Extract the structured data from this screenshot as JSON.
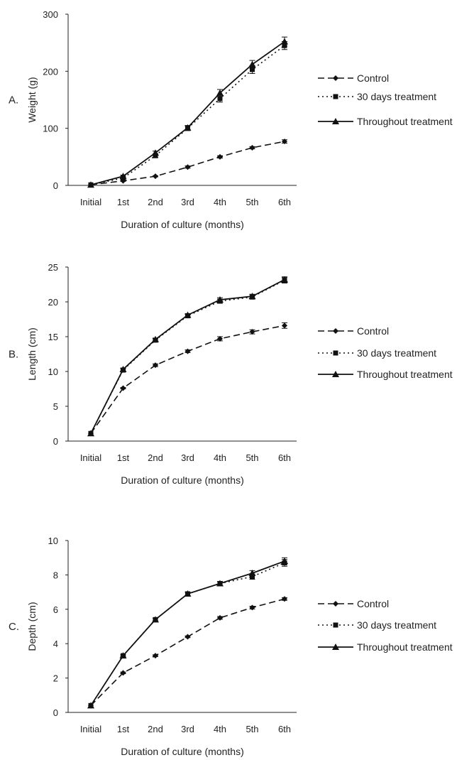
{
  "chart_data": [
    {
      "type": "line",
      "panel_label": "A.",
      "ylabel": "Weight (g)",
      "xlabel": "Duration of culture (months)",
      "categories": [
        "Initial",
        "1st",
        "2nd",
        "3rd",
        "4th",
        "5th",
        "6th"
      ],
      "ylim": [
        0,
        300
      ],
      "yticks": [
        0,
        100,
        200,
        300
      ],
      "grid": false,
      "legend": "right",
      "series": [
        {
          "name": "Control",
          "style": "dashed",
          "marker": "diamond",
          "values": [
            1,
            8,
            16,
            32,
            50,
            66,
            77
          ],
          "errors": [
            0,
            1,
            1,
            2,
            2,
            2,
            3
          ]
        },
        {
          "name": "30 days treatment",
          "style": "dotted",
          "marker": "square",
          "values": [
            1,
            13,
            52,
            100,
            152,
            203,
            245
          ],
          "errors": [
            0,
            2,
            3,
            4,
            6,
            7,
            7
          ]
        },
        {
          "name": "Throughout treatment",
          "style": "solid",
          "marker": "triangle",
          "values": [
            1,
            16,
            57,
            101,
            162,
            212,
            252
          ],
          "errors": [
            0,
            2,
            3,
            4,
            6,
            7,
            8
          ]
        }
      ]
    },
    {
      "type": "line",
      "panel_label": "B.",
      "ylabel": "Length (cm)",
      "xlabel": "Duration of culture (months)",
      "categories": [
        "Initial",
        "1st",
        "2nd",
        "3rd",
        "4th",
        "5th",
        "6th"
      ],
      "ylim": [
        0,
        25
      ],
      "yticks": [
        0,
        5,
        10,
        15,
        20,
        25
      ],
      "grid": false,
      "legend": "right",
      "series": [
        {
          "name": "Control",
          "style": "dashed",
          "marker": "diamond",
          "values": [
            1.1,
            7.6,
            10.9,
            12.9,
            14.7,
            15.7,
            16.6
          ],
          "errors": [
            0,
            0.1,
            0.2,
            0.2,
            0.3,
            0.3,
            0.4
          ]
        },
        {
          "name": "30 days treatment",
          "style": "dotted",
          "marker": "square",
          "values": [
            1.1,
            10.2,
            14.5,
            18.0,
            20.1,
            20.7,
            23.1
          ],
          "errors": [
            0,
            0.2,
            0.2,
            0.2,
            0.3,
            0.3,
            0.4
          ]
        },
        {
          "name": "Throughout treatment",
          "style": "solid",
          "marker": "triangle",
          "values": [
            1.1,
            10.3,
            14.6,
            18.1,
            20.3,
            20.8,
            23.2
          ],
          "errors": [
            0,
            0.2,
            0.2,
            0.2,
            0.3,
            0.3,
            0.4
          ]
        }
      ]
    },
    {
      "type": "line",
      "panel_label": "C.",
      "ylabel": "Depth (cm)",
      "xlabel": "Duration of culture (months)",
      "categories": [
        "Initial",
        "1st",
        "2nd",
        "3rd",
        "4th",
        "5th",
        "6th"
      ],
      "ylim": [
        0,
        10
      ],
      "yticks": [
        0,
        2,
        4,
        6,
        8,
        10
      ],
      "grid": false,
      "legend": "right",
      "series": [
        {
          "name": "Control",
          "style": "dashed",
          "marker": "diamond",
          "values": [
            0.4,
            2.3,
            3.3,
            4.4,
            5.5,
            6.1,
            6.6
          ],
          "errors": [
            0,
            0.05,
            0.05,
            0.05,
            0.08,
            0.08,
            0.08
          ]
        },
        {
          "name": "30 days treatment",
          "style": "dotted",
          "marker": "square",
          "values": [
            0.4,
            3.3,
            5.4,
            6.9,
            7.5,
            7.9,
            8.7
          ],
          "errors": [
            0,
            0.05,
            0.08,
            0.1,
            0.12,
            0.15,
            0.2
          ]
        },
        {
          "name": "Throughout treatment",
          "style": "solid",
          "marker": "triangle",
          "values": [
            0.4,
            3.3,
            5.4,
            6.9,
            7.5,
            8.1,
            8.8
          ],
          "errors": [
            0,
            0.05,
            0.08,
            0.1,
            0.12,
            0.15,
            0.2
          ]
        }
      ]
    }
  ]
}
